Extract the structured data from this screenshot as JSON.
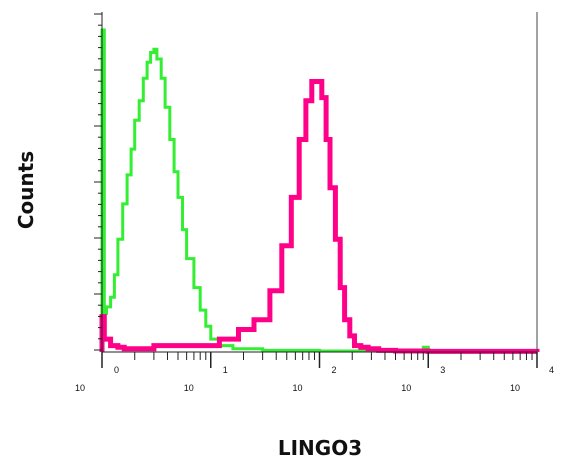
{
  "chart_data": {
    "type": "area",
    "title": "",
    "xlabel": "LINGO3",
    "ylabel": "Counts",
    "xscale": "log",
    "xlim": [
      1,
      10000
    ],
    "x_tick_labels": [
      {
        "base": "10",
        "exp": "0"
      },
      {
        "base": "10",
        "exp": "1"
      },
      {
        "base": "10",
        "exp": "2"
      },
      {
        "base": "10",
        "exp": "3"
      },
      {
        "base": "10",
        "exp": "4"
      }
    ],
    "ylim": [
      0,
      100
    ],
    "grid": false,
    "series": [
      {
        "color": "#33ee33",
        "stroke_width": 3,
        "x": [
          1.0,
          1.05,
          1.1,
          1.2,
          1.3,
          1.4,
          1.55,
          1.7,
          1.85,
          2.0,
          2.2,
          2.4,
          2.6,
          2.8,
          3.0,
          3.2,
          3.5,
          3.8,
          4.2,
          4.6,
          5.0,
          5.5,
          6.0,
          7.0,
          8.0,
          9.0,
          10.0,
          12.0,
          14.0,
          16.0,
          20.0,
          25.0,
          30.0,
          40.0,
          60.0,
          100.0,
          200.0,
          400.0,
          800.0,
          900.0,
          1000.0,
          2000.0,
          10000.0
        ],
        "values": [
          100,
          12,
          14,
          17,
          24,
          35,
          46,
          55,
          63,
          72,
          78,
          85,
          90,
          93,
          94,
          91,
          85,
          76,
          66,
          56,
          48,
          38,
          29,
          20,
          13,
          8,
          4,
          2,
          2,
          1,
          1,
          1,
          0.5,
          0.5,
          0.5,
          0.3,
          0.3,
          0.3,
          0.3,
          1.5,
          0.3,
          0.3,
          0
        ]
      },
      {
        "color": "#ff0088",
        "stroke_width": 5,
        "x": [
          1.0,
          1.05,
          1.2,
          1.4,
          1.6,
          2.0,
          3.0,
          5.0,
          8.0,
          12.0,
          18.0,
          25.0,
          35.0,
          45.0,
          55.0,
          65.0,
          75.0,
          85.0,
          95.0,
          105.0,
          115.0,
          125.0,
          140.0,
          155.0,
          170.0,
          190.0,
          210.0,
          240.0,
          280.0,
          350.0,
          500.0,
          1000.0,
          3000.0,
          10000.0
        ],
        "values": [
          11,
          4,
          2,
          1.5,
          1,
          1,
          2,
          2,
          2,
          4,
          7,
          10,
          19,
          33,
          48,
          66,
          78,
          84,
          84,
          79,
          66,
          51,
          35,
          20,
          10,
          5,
          2,
          1.5,
          1,
          0.5,
          0.3,
          0.2,
          0.2,
          0
        ]
      }
    ]
  }
}
